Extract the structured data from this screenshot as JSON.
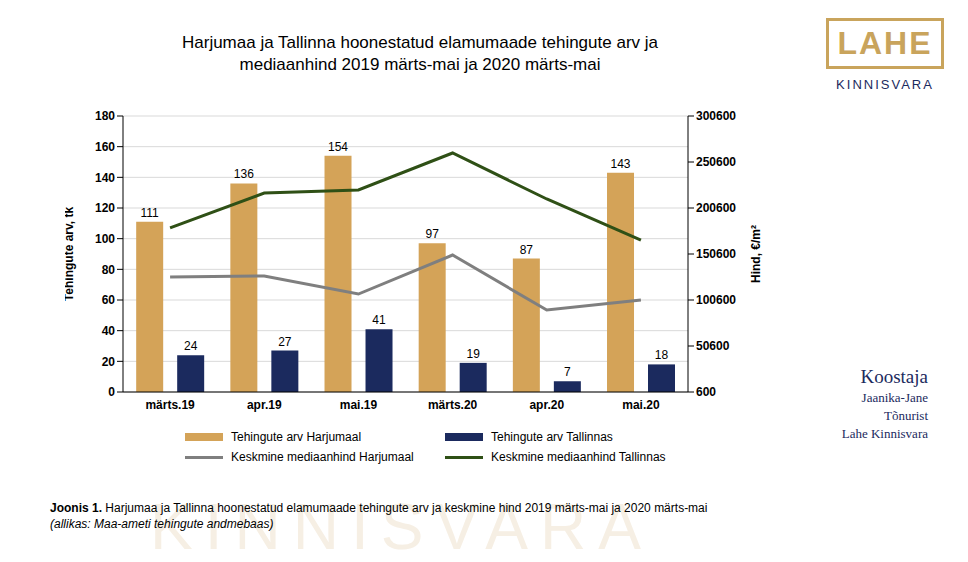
{
  "chart_data": {
    "type": "bar",
    "title": "Harjumaa ja Tallinna hoonestatud elamumaade tehingute arv ja mediaanhind 2019 märts-mai ja 2020 märts-mai",
    "categories": [
      "märts.19",
      "apr.19",
      "mai.19",
      "märts.20",
      "apr.20",
      "mai.20"
    ],
    "series": [
      {
        "name": "Tehingute arv Harjumaal",
        "type": "bar",
        "color": "#d4a358",
        "values": [
          111,
          136,
          154,
          97,
          87,
          143
        ]
      },
      {
        "name": "Tehingute arv Tallinnas",
        "type": "bar",
        "color": "#1b2a5e",
        "values": [
          24,
          27,
          41,
          19,
          7,
          18
        ]
      },
      {
        "name": "Keskmine mediaanhind Harjumaal",
        "type": "line",
        "axis": "y2",
        "color": "#7f7f7f",
        "line_style": "solid",
        "marker": "none",
        "values": [
          125600,
          126700,
          107100,
          149500,
          89700,
          100600
        ]
      },
      {
        "name": "Keskmine mediaanhind Tallinnas",
        "type": "line",
        "axis": "y2",
        "color": "#2f5016",
        "line_style": "solid",
        "marker": "none",
        "values": [
          178900,
          216900,
          220200,
          260400,
          210400,
          165800
        ]
      }
    ],
    "ylabel": "Tehingute arv, tk",
    "y2label": "Hind, €/m²",
    "ylim": [
      0,
      180
    ],
    "yticks": [
      0,
      20,
      40,
      60,
      80,
      100,
      120,
      140,
      160,
      180
    ],
    "y2lim": [
      600,
      300600
    ],
    "y2ticks": [
      600,
      50600,
      100600,
      150600,
      200600,
      250600,
      300600
    ],
    "grid": true,
    "legend": "bottom",
    "data_labels": true
  },
  "caption": {
    "label": "Joonis 1.",
    "text": "Harjumaa ja Tallinna hoonestatud elamumaade tehingute arv ja keskmine hind 2019 märts-mai ja 2020 märts-mai",
    "source": "(allikas: Maa-ameti tehingute andmebaas)"
  },
  "logo": {
    "mark": "LAHE",
    "text": "KINNISVARA"
  },
  "author": [
    "Koostaja",
    "Jaanika-Jane",
    "Tõnurist",
    "Lahe Kinnisvara"
  ],
  "watermark": "KINNISVARA"
}
